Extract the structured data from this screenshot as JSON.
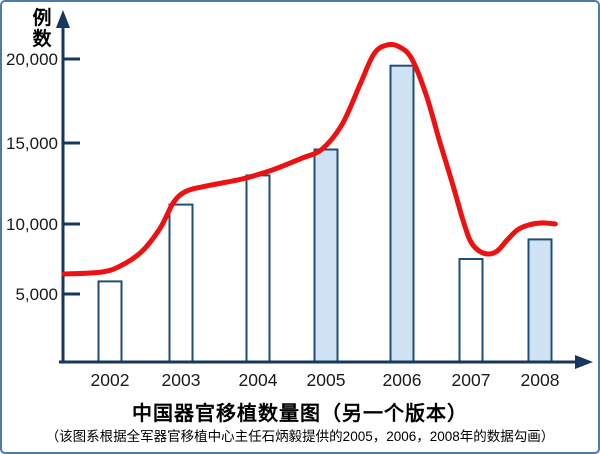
{
  "frame": {
    "border_color": "#4d7ba8",
    "background": "#ffffff"
  },
  "chart_data": {
    "type": "bar",
    "title": "中国器官移植数量图（另一个版本）",
    "subtitle": "（该图系根据全军器官移植中心主任石炳毅提供的2005，2006，2008年的数据勾画）",
    "xlabel": "",
    "ylabel": "例数",
    "categories": [
      "2002",
      "2003",
      "2004",
      "2005",
      "2006",
      "2007",
      "2008"
    ],
    "bars": {
      "values": [
        5900,
        11200,
        13000,
        14600,
        19600,
        7500,
        8900
      ],
      "highlighted": [
        false,
        false,
        false,
        true,
        true,
        false,
        true
      ],
      "fill_plain": "#ffffff",
      "fill_highlight": "#cfe2f3",
      "border_color": "#1f4e79"
    },
    "line": {
      "name": "trend-curve",
      "color": "#ee1111",
      "points": [
        [
          2001.36,
          6430
        ],
        [
          2001.89,
          6570
        ],
        [
          2002.17,
          7070
        ],
        [
          2002.45,
          8070
        ],
        [
          2002.7,
          9710
        ],
        [
          2002.89,
          11360
        ],
        [
          2003.07,
          12040
        ],
        [
          2003.35,
          12350
        ],
        [
          2003.84,
          12780
        ],
        [
          2004.26,
          13330
        ],
        [
          2004.68,
          14070
        ],
        [
          2004.96,
          14630
        ],
        [
          2005.24,
          16130
        ],
        [
          2005.49,
          18510
        ],
        [
          2005.68,
          20300
        ],
        [
          2005.86,
          20830
        ],
        [
          2006.04,
          20710
        ],
        [
          2006.21,
          20000
        ],
        [
          2006.41,
          17860
        ],
        [
          2006.6,
          15060
        ],
        [
          2006.77,
          12590
        ],
        [
          2006.91,
          10430
        ],
        [
          2007.02,
          8860
        ],
        [
          2007.13,
          8140
        ],
        [
          2007.27,
          7860
        ],
        [
          2007.4,
          8070
        ],
        [
          2007.54,
          8860
        ],
        [
          2007.68,
          9570
        ],
        [
          2007.84,
          9930
        ],
        [
          2008.03,
          10070
        ],
        [
          2008.21,
          10000
        ]
      ]
    },
    "y_axis": {
      "ticks": [
        {
          "value": 5000,
          "label": "5,000"
        },
        {
          "value": 10000,
          "label": "10,000"
        },
        {
          "value": 15000,
          "label": "15,000"
        },
        {
          "value": 20000,
          "label": "20,000"
        }
      ],
      "ylim": [
        0,
        21000
      ]
    },
    "axis_color": "#17375d",
    "grid": false,
    "legend": "none"
  }
}
